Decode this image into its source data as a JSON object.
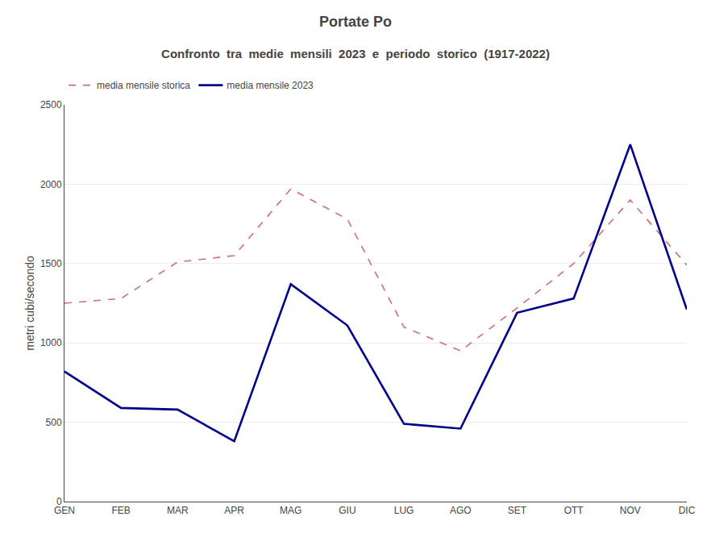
{
  "chart_data": {
    "type": "line",
    "title": "Portate Po",
    "subtitle": "Confronto  tra  medie  mensili  2023  e  periodo  storico  (1917-2022)",
    "y_label": "metri cubi/secondo",
    "categories": [
      "GEN",
      "FEB",
      "MAR",
      "APR",
      "MAG",
      "GIU",
      "LUG",
      "AGO",
      "SET",
      "OTT",
      "NOV",
      "DIC"
    ],
    "series": [
      {
        "name": "media mensile storica",
        "color": "#cd7070",
        "line_style": "dashed",
        "values": [
          1250,
          1280,
          1510,
          1550,
          1970,
          1780,
          1100,
          950,
          1220,
          1500,
          1900,
          1490
        ]
      },
      {
        "name": "media mensile 2023",
        "color": "#00008B",
        "line_style": "solid",
        "values": [
          820,
          590,
          580,
          380,
          1370,
          1110,
          490,
          460,
          1190,
          1280,
          2250,
          1210
        ]
      }
    ],
    "ylim": [
      0,
      2500
    ],
    "yticks": [
      0,
      500,
      1000,
      1500,
      2000,
      2500
    ],
    "grid": true,
    "legend": "upper left"
  }
}
